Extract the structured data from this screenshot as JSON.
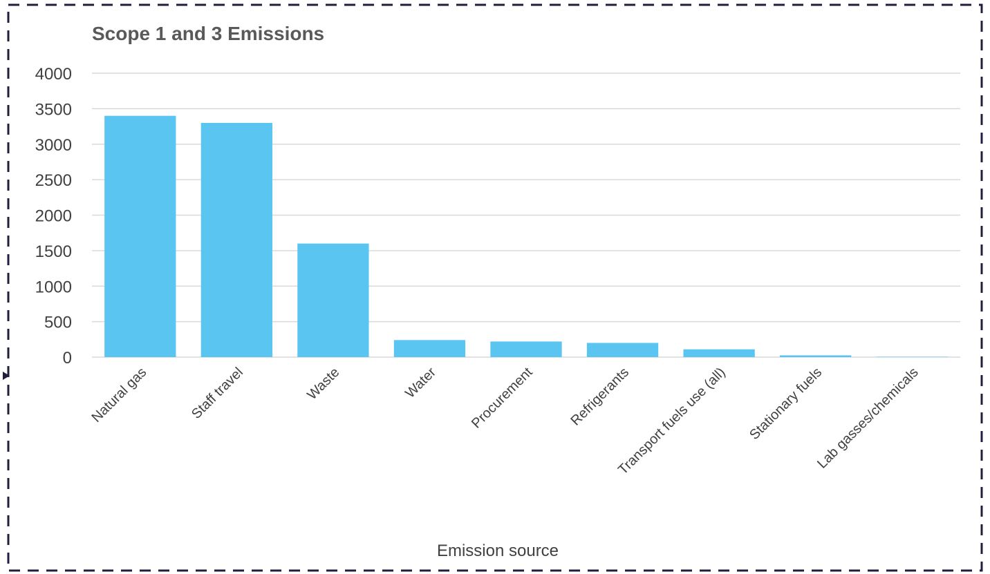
{
  "chart_data": {
    "type": "bar",
    "title": "Scope 1 and 3 Emissions",
    "xlabel": "Emission source",
    "ylabel": "",
    "categories": [
      "Natural gas",
      "Staff travel",
      "Waste",
      "Water",
      "Procurement",
      "Refrigerants",
      "Transport fuels use (all)",
      "Stationary fuels",
      "Lab gasses/chemicals"
    ],
    "values": [
      3400,
      3300,
      1600,
      240,
      220,
      200,
      110,
      25,
      5
    ],
    "ylim": [
      0,
      4000
    ],
    "yticks": [
      0,
      500,
      1000,
      1500,
      2000,
      2500,
      3000,
      3500,
      4000
    ],
    "grid": true,
    "legend": "none",
    "colors": {
      "bar": "#5BC5F2",
      "grid": "#D9D9D9",
      "frame": "#1F1F3D"
    }
  }
}
